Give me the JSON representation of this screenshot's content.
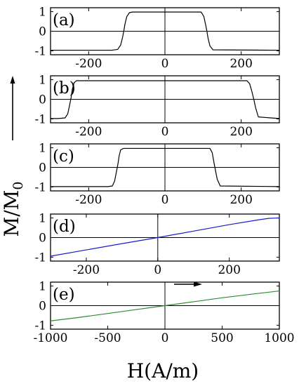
{
  "chart_data": [
    {
      "type": "line",
      "panel_label": "(a)",
      "xlim": [
        -300,
        300
      ],
      "ylim": [
        -1.2,
        1.2
      ],
      "x_ticks": [
        -200,
        0,
        200
      ],
      "x_tick_labels": [
        "-200",
        "0",
        "200"
      ],
      "y_ticks": [
        -1,
        0,
        1
      ],
      "y_tick_labels": [
        "-1",
        "0",
        "1"
      ],
      "color": "#000000",
      "series": [
        {
          "x": [
            -300,
            -140,
            -124,
            -116,
            -111,
            -108,
            -105,
            -100,
            -93,
            -85,
            95,
            102,
            107,
            110,
            113,
            118,
            126,
            300
          ],
          "y": [
            -0.97,
            -0.97,
            -0.93,
            -0.7,
            -0.3,
            0.0,
            0.35,
            0.75,
            0.95,
            0.98,
            0.98,
            0.75,
            0.3,
            0.0,
            -0.35,
            -0.75,
            -0.95,
            -0.97
          ]
        }
      ]
    },
    {
      "type": "line",
      "panel_label": "(b)",
      "xlim": [
        -300,
        300
      ],
      "ylim": [
        -1.2,
        1.2
      ],
      "x_ticks": [
        -200,
        0,
        200
      ],
      "x_tick_labels": [
        "-200",
        "0",
        "200"
      ],
      "y_ticks": [
        -1,
        0,
        1
      ],
      "y_tick_labels": [
        "-1",
        "0",
        "1"
      ],
      "color": "#000000",
      "series": [
        {
          "x": [
            -300,
            -280,
            -262,
            -255,
            -250,
            -246,
            -243,
            -238,
            -232,
            215,
            222,
            228,
            233,
            238,
            245,
            300
          ],
          "y": [
            -0.98,
            -0.98,
            -0.95,
            -0.75,
            -0.3,
            0.1,
            0.5,
            0.85,
            0.95,
            0.95,
            0.8,
            0.4,
            0.0,
            -0.45,
            -0.9,
            -0.98
          ]
        }
      ]
    },
    {
      "type": "line",
      "panel_label": "(c)",
      "xlim": [
        -300,
        300
      ],
      "ylim": [
        -1.2,
        1.2
      ],
      "x_ticks": [
        -200,
        0,
        200
      ],
      "x_tick_labels": [
        "-200",
        "0",
        "200"
      ],
      "y_ticks": [
        -1,
        0,
        1
      ],
      "y_tick_labels": [
        "-1",
        "0",
        "1"
      ],
      "color": "#000000",
      "series": [
        {
          "x": [
            -300,
            -150,
            -138,
            -132,
            -127,
            -123,
            -120,
            -116,
            -108,
            118,
            124,
            128,
            132,
            137,
            145,
            300
          ],
          "y": [
            -0.98,
            -0.98,
            -0.95,
            -0.7,
            -0.2,
            0.2,
            0.6,
            0.9,
            0.97,
            0.97,
            0.75,
            0.3,
            -0.1,
            -0.6,
            -0.95,
            -0.98
          ]
        }
      ]
    },
    {
      "type": "line",
      "panel_label": "(d)",
      "xlim": [
        -300,
        340
      ],
      "ylim": [
        -1.2,
        1.2
      ],
      "x_ticks": [
        -200,
        0,
        200
      ],
      "x_tick_labels": [
        "-200",
        "0",
        "200"
      ],
      "y_ticks": [
        -1,
        0,
        1
      ],
      "y_tick_labels": [
        "-1",
        "0",
        "1"
      ],
      "color": "#1a1acc",
      "series": [
        {
          "x": [
            -300,
            -200,
            -100,
            0,
            100,
            200,
            280,
            310,
            340
          ],
          "y": [
            -0.95,
            -0.63,
            -0.31,
            0.0,
            0.33,
            0.66,
            0.9,
            0.98,
            1.0
          ]
        }
      ]
    },
    {
      "type": "line",
      "panel_label": "(e)",
      "xlim": [
        -1000,
        1000
      ],
      "ylim": [
        -1.2,
        1.2
      ],
      "x_ticks": [
        -1000,
        -500,
        0,
        500,
        1000
      ],
      "x_tick_labels": [
        "-1000",
        "-500",
        "0",
        "500",
        "1000"
      ],
      "y_ticks": [
        -1,
        0,
        1
      ],
      "y_tick_labels": [
        "-1",
        "0",
        "1"
      ],
      "color": "#2e8b2e",
      "series": [
        {
          "x": [
            -1000,
            -750,
            -500,
            -250,
            0,
            250,
            500,
            750,
            1000
          ],
          "y": [
            -0.78,
            -0.6,
            -0.4,
            -0.2,
            0.0,
            0.2,
            0.4,
            0.58,
            0.75
          ]
        }
      ]
    }
  ],
  "xlabel": "H(A/m)",
  "ylabel": {
    "main": "M/M",
    "subscript": "0"
  }
}
